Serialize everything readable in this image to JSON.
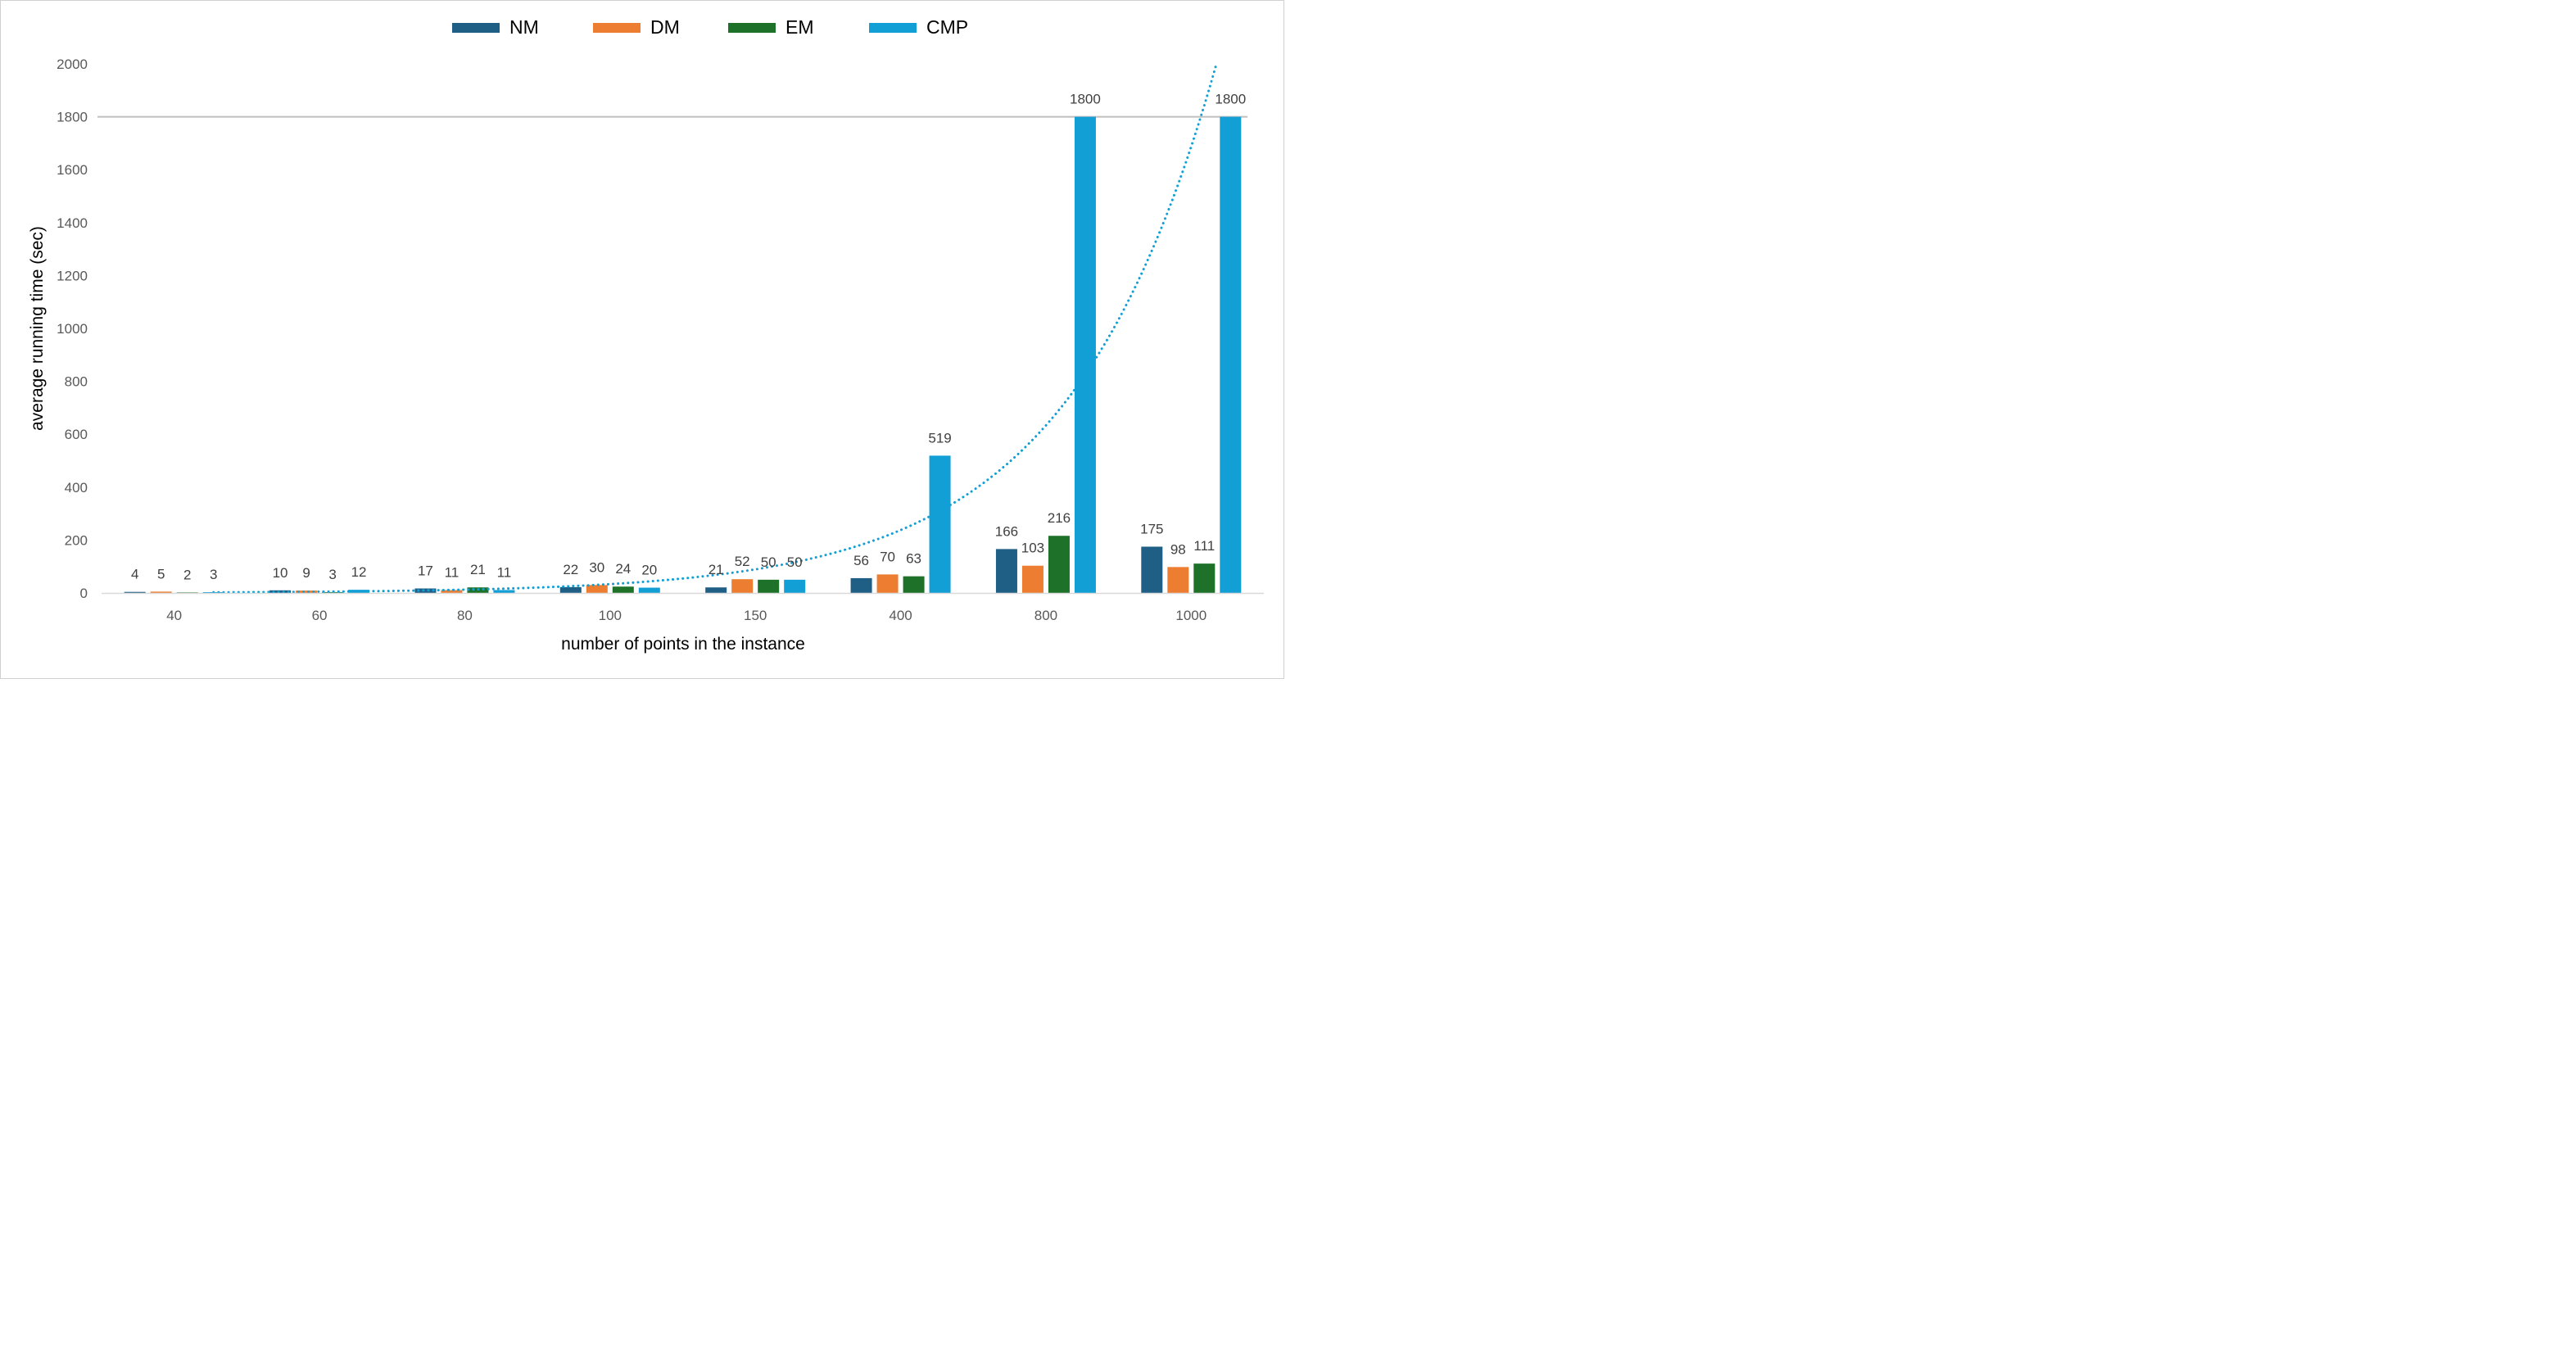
{
  "chart_data": {
    "type": "bar",
    "title": "",
    "xlabel": "number of points in the instance",
    "ylabel": "average running time (sec)",
    "categories": [
      "40",
      "60",
      "80",
      "100",
      "150",
      "400",
      "800",
      "1000"
    ],
    "ylim": [
      0,
      2000
    ],
    "yticks": [
      0,
      200,
      400,
      600,
      800,
      1000,
      1200,
      1400,
      1600,
      1800,
      2000
    ],
    "grid": false,
    "legend_position": "top-center",
    "series": [
      {
        "name": "NM",
        "color": "#1f5f86",
        "values": [
          4,
          10,
          17,
          22,
          21,
          56,
          166,
          175
        ]
      },
      {
        "name": "DM",
        "color": "#ed7d31",
        "values": [
          5,
          9,
          11,
          30,
          52,
          70,
          103,
          98
        ]
      },
      {
        "name": "EM",
        "color": "#1e7129",
        "values": [
          2,
          3,
          21,
          24,
          50,
          63,
          216,
          111
        ]
      },
      {
        "name": "CMP",
        "color": "#129fd6",
        "values": [
          3,
          12,
          11,
          20,
          50,
          519,
          1800,
          1800
        ]
      }
    ],
    "reference_line": {
      "value": 1800,
      "color": "#bfbfbf"
    },
    "trendline": {
      "series": "CMP",
      "type": "exponential",
      "style": "dotted",
      "color": "#129fd6"
    }
  }
}
